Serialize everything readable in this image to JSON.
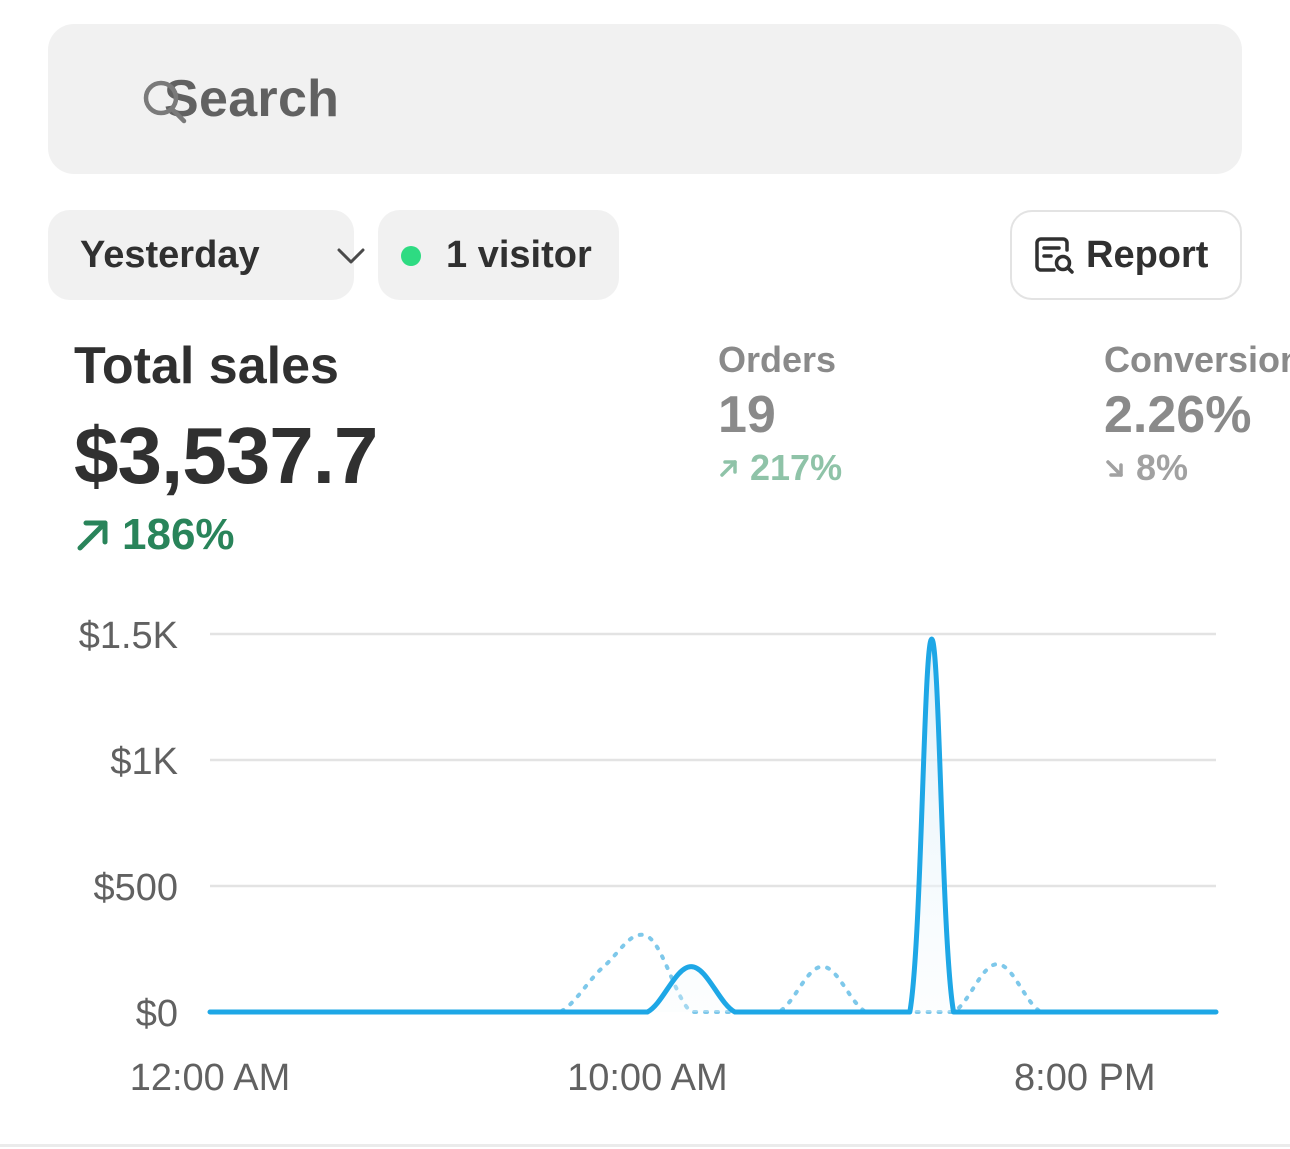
{
  "search": {
    "placeholder": "Search"
  },
  "filters": {
    "date_label": "Yesterday",
    "visitors_label": "1 visitor",
    "report_label": "Report"
  },
  "total_sales": {
    "title": "Total sales",
    "value": "$3,537.7",
    "change": "186%",
    "direction": "up",
    "color": "#29845a"
  },
  "orders": {
    "title": "Orders",
    "value": "19",
    "change": "217%",
    "direction": "up"
  },
  "conversion": {
    "title": "Conversion",
    "value": "2.26%",
    "change": "8%",
    "direction": "down"
  },
  "colors": {
    "accent": "#1ea7e6",
    "live_dot": "#2edb82",
    "positive": "#29845a"
  },
  "chart_data": {
    "type": "line",
    "xlabel": "",
    "ylabel": "",
    "x_ticks": [
      "12:00 AM",
      "10:00 AM",
      "8:00 PM"
    ],
    "y_ticks": [
      "$0",
      "$500",
      "$1K",
      "$1.5K"
    ],
    "ylim": [
      0,
      1500
    ],
    "xlim": [
      0,
      23
    ],
    "grid": true,
    "series": [
      {
        "style": "solid",
        "color": "#1ea7e6",
        "x": [
          0,
          1,
          2,
          3,
          4,
          5,
          6,
          7,
          8,
          9,
          10,
          11,
          12,
          13,
          14,
          15,
          16,
          16.5,
          17,
          18,
          19,
          20,
          21,
          22,
          23
        ],
        "values": [
          0,
          0,
          0,
          0,
          0,
          0,
          0,
          0,
          0,
          0,
          0,
          180,
          0,
          0,
          0,
          0,
          0,
          1480,
          0,
          0,
          0,
          0,
          0,
          0,
          0
        ]
      },
      {
        "style": "dotted",
        "color": "#7ec8ea",
        "x": [
          0,
          1,
          2,
          3,
          4,
          5,
          6,
          7,
          8,
          9,
          10,
          11,
          12,
          13,
          14,
          15,
          16,
          17,
          18,
          19,
          20,
          21,
          22,
          23
        ],
        "values": [
          0,
          0,
          0,
          0,
          0,
          0,
          0,
          0,
          0,
          180,
          300,
          0,
          0,
          0,
          180,
          0,
          0,
          0,
          190,
          0,
          0,
          0,
          0,
          0
        ]
      }
    ]
  }
}
